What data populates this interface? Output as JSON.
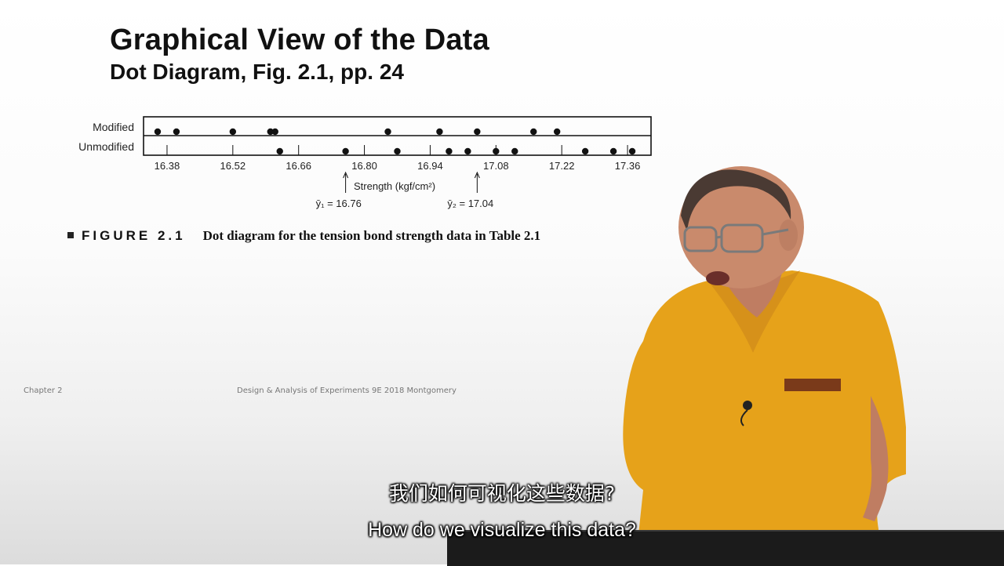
{
  "slide": {
    "title": "Graphical View of the Data",
    "subtitle": "Dot Diagram, Fig. 2.1, pp. 24"
  },
  "chart_data": {
    "type": "scatter",
    "xlabel": "Strength (kgf/cm²)",
    "xlim": [
      16.33,
      17.41
    ],
    "xticks": [
      16.38,
      16.52,
      16.66,
      16.8,
      16.94,
      17.08,
      17.22,
      17.36
    ],
    "xtick_labels": [
      "16.38",
      "16.52",
      "16.66",
      "16.80",
      "16.94",
      "17.08",
      "17.22",
      "17.36"
    ],
    "rows": [
      "Modified",
      "Unmodified"
    ],
    "series": [
      {
        "name": "Modified",
        "values": [
          16.36,
          16.4,
          16.52,
          16.6,
          16.61,
          16.85,
          16.96,
          17.04,
          17.16,
          17.21
        ]
      },
      {
        "name": "Unmodified",
        "values": [
          16.62,
          16.76,
          16.87,
          16.98,
          17.02,
          17.08,
          17.12,
          17.27,
          17.33,
          17.37
        ]
      }
    ],
    "annotations": [
      {
        "x": 16.76,
        "label": "ȳ₁ = 16.76"
      },
      {
        "x": 17.04,
        "label": "ȳ₂ = 17.04"
      }
    ],
    "grid": false
  },
  "figure_caption": {
    "label": "FIGURE 2.1",
    "text": "Dot diagram for the tension bond strength data in Table 2.1"
  },
  "footer": {
    "left": "Chapter 2",
    "center": "Design & Analysis of Experiments 9E 2018 Montgomery"
  },
  "captions": {
    "chinese": "我们如何可视化这些数据?",
    "english": "How do we visualize this data?"
  },
  "colors": {
    "shirt": "#e6a21a",
    "skin": "#c98a6c"
  }
}
